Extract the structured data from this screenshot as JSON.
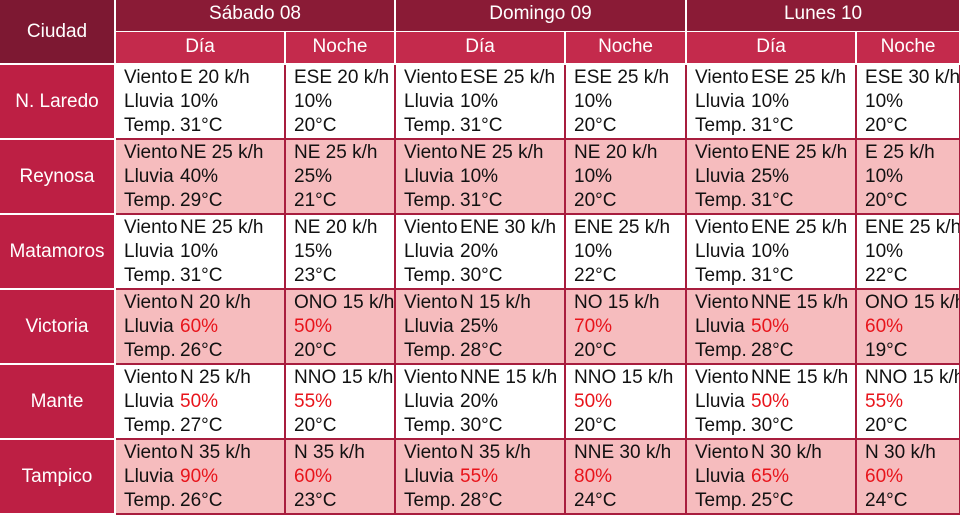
{
  "header": {
    "city_label": "Ciudad",
    "days": [
      "Sábado 08",
      "Domingo 09",
      "Lunes 10"
    ],
    "dia_label": "Día",
    "noche_label": "Noche"
  },
  "labels": {
    "viento": "Viento",
    "lluvia": "Lluvia",
    "temp": "Temp."
  },
  "highlight_color": "#e8141b",
  "rows": [
    {
      "city": "N. Laredo",
      "cells": [
        {
          "viento": "E 20 k/h",
          "lluvia": "10%",
          "temp": "31°C"
        },
        {
          "viento": "ESE 20 k/h",
          "lluvia": "10%",
          "temp": "20°C"
        },
        {
          "viento": "ESE 25 k/h",
          "lluvia": "10%",
          "temp": "31°C"
        },
        {
          "viento": "ESE 25 k/h",
          "lluvia": "10%",
          "temp": "20°C"
        },
        {
          "viento": "ESE 25 k/h",
          "lluvia": "10%",
          "temp": "31°C"
        },
        {
          "viento": "ESE 30 k/h",
          "lluvia": "10%",
          "temp": "20°C"
        }
      ]
    },
    {
      "city": "Reynosa",
      "cells": [
        {
          "viento": "NE 25 k/h",
          "lluvia": "40%",
          "temp": "29°C"
        },
        {
          "viento": "NE 25 k/h",
          "lluvia": "25%",
          "temp": "21°C"
        },
        {
          "viento": "NE 25 k/h",
          "lluvia": "10%",
          "temp": "31°C"
        },
        {
          "viento": "NE 20 k/h",
          "lluvia": "10%",
          "temp": "20°C"
        },
        {
          "viento": "ENE 25 k/h",
          "lluvia": "25%",
          "temp": "31°C"
        },
        {
          "viento": "E 25 k/h",
          "lluvia": "10%",
          "temp": "20°C"
        }
      ]
    },
    {
      "city": "Matamoros",
      "cells": [
        {
          "viento": "NE 25 k/h",
          "lluvia": "10%",
          "temp": "31°C"
        },
        {
          "viento": "NE 20 k/h",
          "lluvia": "15%",
          "temp": "23°C"
        },
        {
          "viento": "ENE 30 k/h",
          "lluvia": "20%",
          "temp": "30°C"
        },
        {
          "viento": "ENE 25 k/h",
          "lluvia": "10%",
          "temp": "22°C"
        },
        {
          "viento": "ENE 25 k/h",
          "lluvia": "10%",
          "temp": "31°C"
        },
        {
          "viento": "ENE 25 k/h",
          "lluvia": "10%",
          "temp": "22°C"
        }
      ]
    },
    {
      "city": "Victoria",
      "cells": [
        {
          "viento": "N 20 k/h",
          "lluvia": "60%",
          "temp": "26°C",
          "hi": true
        },
        {
          "viento": "ONO 15 k/h",
          "lluvia": "50%",
          "temp": "20°C",
          "hi": true
        },
        {
          "viento": "N 15 k/h",
          "lluvia": "25%",
          "temp": "28°C"
        },
        {
          "viento": "NO 15 k/h",
          "lluvia": "70%",
          "temp": "20°C",
          "hi": true
        },
        {
          "viento": "NNE 15 k/h",
          "lluvia": "50%",
          "temp": "28°C",
          "hi": true
        },
        {
          "viento": "ONO 15 k/h",
          "lluvia": "60%",
          "temp": "19°C",
          "hi": true
        }
      ]
    },
    {
      "city": "Mante",
      "cells": [
        {
          "viento": "N 25 k/h",
          "lluvia": "50%",
          "temp": "27°C",
          "hi": true
        },
        {
          "viento": "NNO 15 k/h",
          "lluvia": "55%",
          "temp": "20°C",
          "hi": true
        },
        {
          "viento": "NNE 15 k/h",
          "lluvia": "20%",
          "temp": "30°C"
        },
        {
          "viento": "NNO 15 k/h",
          "lluvia": "50%",
          "temp": "20°C",
          "hi": true
        },
        {
          "viento": "NNE 15 k/h",
          "lluvia": "50%",
          "temp": "30°C",
          "hi": true
        },
        {
          "viento": "NNO 15 k/h",
          "lluvia": "55%",
          "temp": "20°C",
          "hi": true
        }
      ]
    },
    {
      "city": "Tampico",
      "cells": [
        {
          "viento": "N 35 k/h",
          "lluvia": "90%",
          "temp": "26°C",
          "hi": true
        },
        {
          "viento": "N 35 k/h",
          "lluvia": "60%",
          "temp": "23°C",
          "hi": true
        },
        {
          "viento": "N 35 k/h",
          "lluvia": "55%",
          "temp": "28°C",
          "hi": true
        },
        {
          "viento": "NNE 30 k/h",
          "lluvia": "80%",
          "temp": "24°C",
          "hi": true
        },
        {
          "viento": "N 30 k/h",
          "lluvia": "65%",
          "temp": "25°C",
          "hi": true
        },
        {
          "viento": "N 30 k/h",
          "lluvia": "60%",
          "temp": "24°C",
          "hi": true
        }
      ]
    }
  ]
}
